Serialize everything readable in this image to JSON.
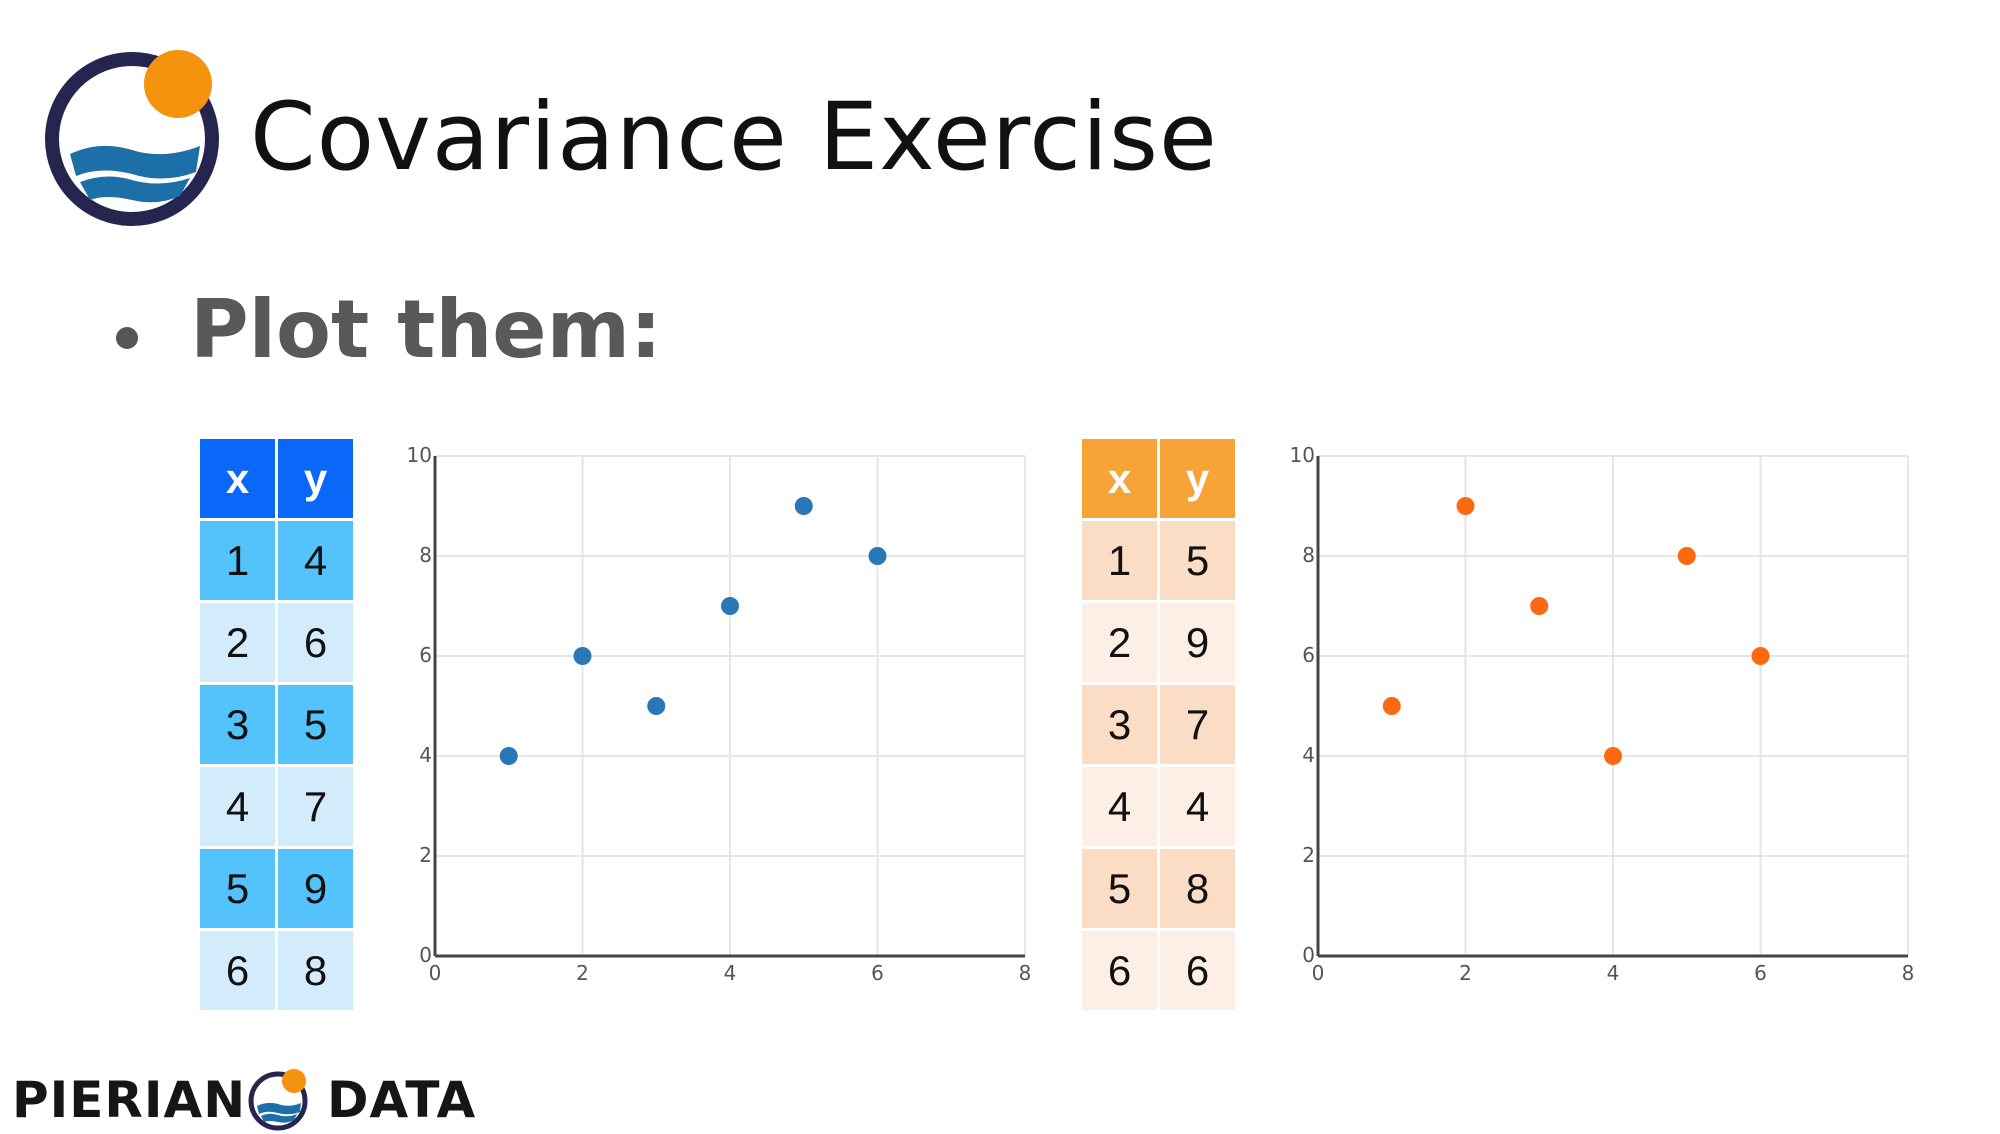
{
  "title": "Covariance Exercise",
  "bullet": "Plot them:",
  "colors": {
    "blue_header": "#0b67f7",
    "blue_dark": "#55c3fb",
    "blue_light": "#d3ecfc",
    "orange_header": "#f8a338",
    "orange_dark": "#fbdcc4",
    "orange_light": "#fdefe6",
    "blue_point": "#2878b8",
    "orange_point": "#fb6a10"
  },
  "table_blue": {
    "headers": [
      "x",
      "y"
    ],
    "rows": [
      [
        "1",
        "4"
      ],
      [
        "2",
        "6"
      ],
      [
        "3",
        "5"
      ],
      [
        "4",
        "7"
      ],
      [
        "5",
        "9"
      ],
      [
        "6",
        "8"
      ]
    ]
  },
  "table_orange": {
    "headers": [
      "x",
      "y"
    ],
    "rows": [
      [
        "1",
        "5"
      ],
      [
        "2",
        "9"
      ],
      [
        "3",
        "7"
      ],
      [
        "4",
        "4"
      ],
      [
        "5",
        "8"
      ],
      [
        "6",
        "6"
      ]
    ]
  },
  "chart_data": [
    {
      "type": "scatter",
      "x": [
        1,
        2,
        3,
        4,
        5,
        6
      ],
      "y": [
        4,
        6,
        5,
        7,
        9,
        8
      ],
      "xlim": [
        0,
        8
      ],
      "ylim": [
        0,
        10
      ],
      "xticks": [
        "0",
        "2",
        "4",
        "6",
        "8"
      ],
      "yticks": [
        "0",
        "2",
        "4",
        "6",
        "8",
        "10"
      ],
      "grid": true,
      "color": "#2878b8"
    },
    {
      "type": "scatter",
      "x": [
        1,
        2,
        3,
        4,
        5,
        6
      ],
      "y": [
        5,
        9,
        7,
        4,
        8,
        6
      ],
      "xlim": [
        0,
        8
      ],
      "ylim": [
        0,
        10
      ],
      "xticks": [
        "0",
        "2",
        "4",
        "6",
        "8"
      ],
      "yticks": [
        "0",
        "2",
        "4",
        "6",
        "8",
        "10"
      ],
      "grid": true,
      "color": "#fb6a10"
    }
  ],
  "footer": {
    "word1": "PIERIAN",
    "word2": "DATA"
  }
}
